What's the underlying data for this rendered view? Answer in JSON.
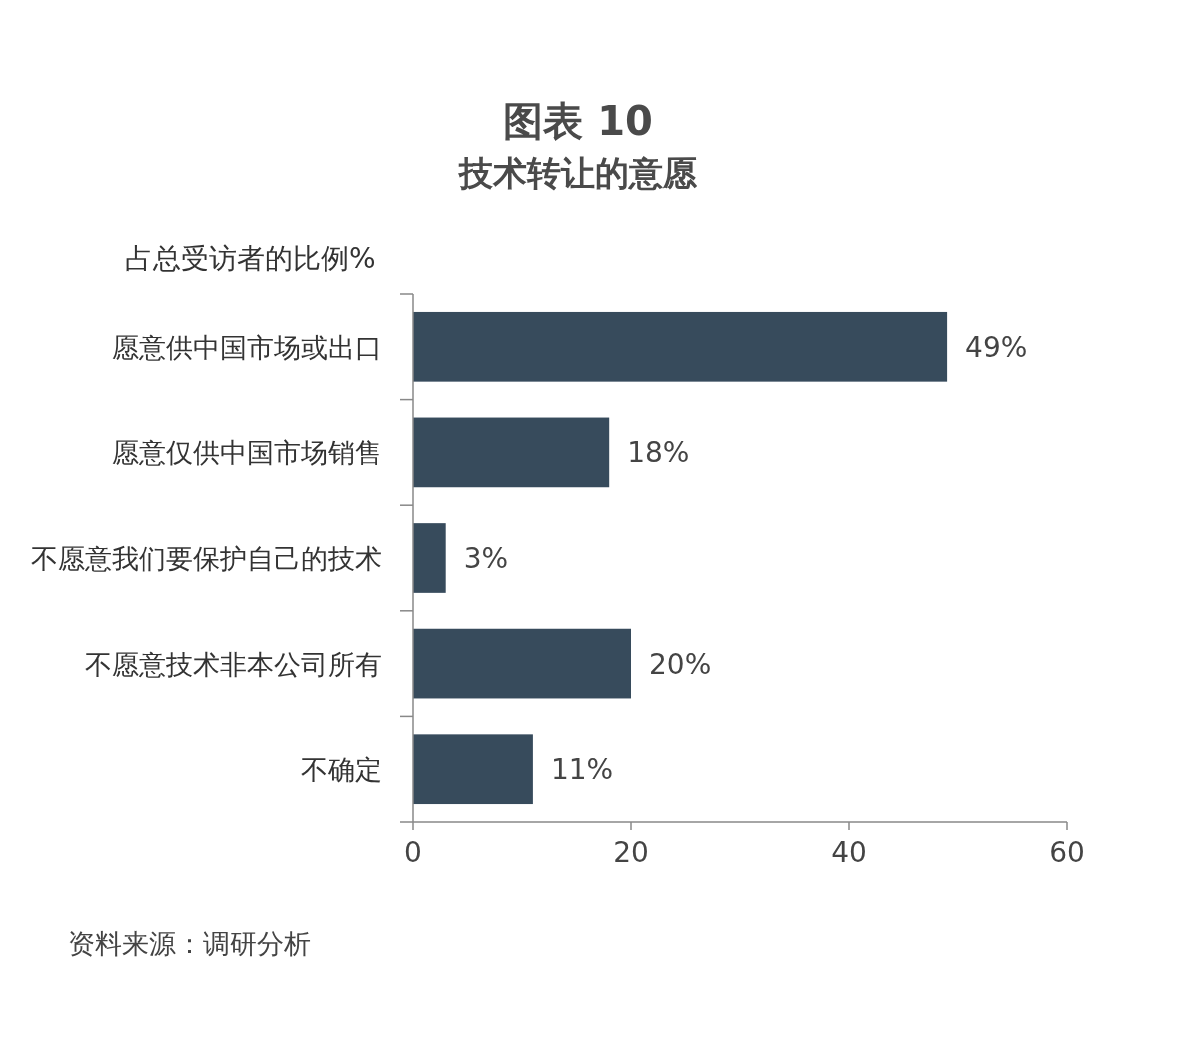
{
  "chart_data": {
    "type": "bar",
    "orientation": "horizontal",
    "title": "图表 10",
    "subtitle": "技术转让的意愿",
    "xlabel": "占总受访者的比例%",
    "categories": [
      "愿意供中国市场或出口",
      "愿意仅供中国市场销售",
      "不愿意我们要保护自己的技术",
      "不愿意技术非本公司所有",
      "不确定"
    ],
    "values": [
      49,
      18,
      3,
      20,
      11
    ],
    "value_labels": [
      "49%",
      "18%",
      "3%",
      "20%",
      "11%"
    ],
    "color": "#374b5c",
    "xlim": [
      0,
      60
    ],
    "xticks": [
      0,
      20,
      40,
      60
    ],
    "annotations": [
      "资料来源：调研分析"
    ]
  }
}
